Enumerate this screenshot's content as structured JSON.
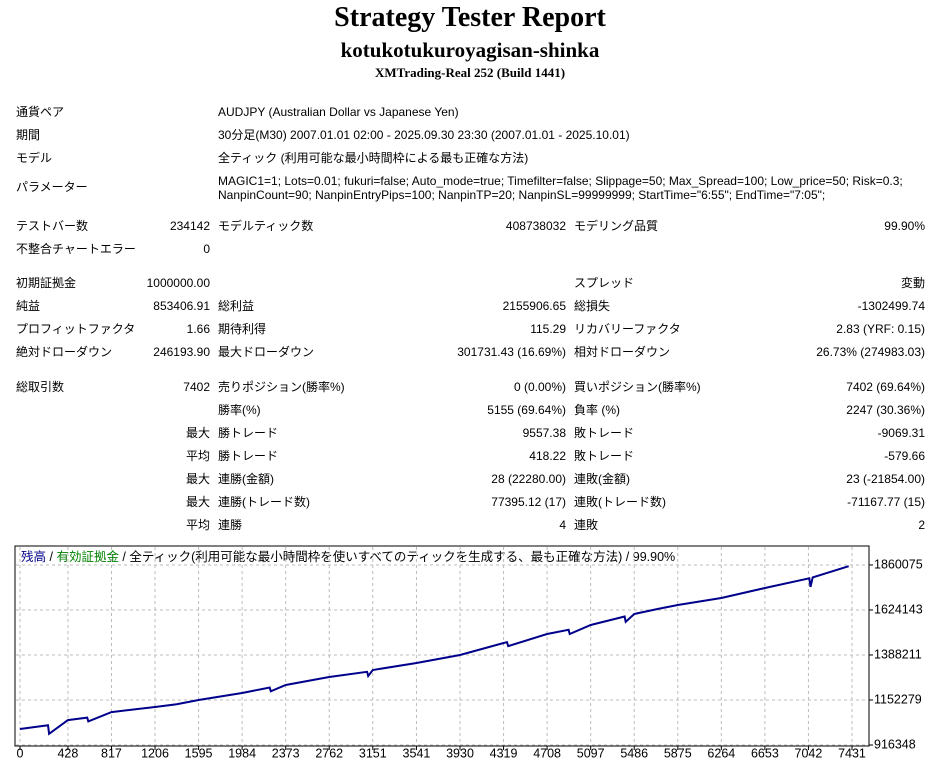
{
  "header": {
    "title": "Strategy Tester Report",
    "subtitle": "kotukotukuroyagisan-shinka",
    "server": "XMTrading-Real 252 (Build 1441)"
  },
  "groups": [
    [
      {
        "label": "通貨ペア",
        "text": "AUDJPY (Australian Dollar vs Japanese Yen)"
      },
      {
        "label": "期間",
        "text": "30分足(M30) 2007.01.01 02:00 - 2025.09.30 23:30 (2007.01.01 - 2025.10.01)"
      },
      {
        "label": "モデル",
        "text": "全ティック (利用可能な最小時間枠による最も正確な方法)"
      },
      {
        "label": "パラメーター",
        "text": "MAGIC1=1; Lots=0.01; fukuri=false; Auto_mode=true; Timefilter=false; Slippage=50; Max_Spread=100; Low_price=50; Risk=0.3; NanpinCount=90; NanpinEntryPips=100; NanpinTP=20; NanpinSL=99999999; StartTime=\"6:55\"; EndTime=\"7:05\";"
      }
    ],
    [
      {
        "label": "テストバー数",
        "value": "234142",
        "label2": "モデルティック数",
        "value2": "408738032",
        "label3": "モデリング品質",
        "value3": "99.90%"
      },
      {
        "label": "不整合チャートエラー",
        "value": "0"
      }
    ],
    [
      {
        "label": "初期証拠金",
        "value": "1000000.00",
        "label3": "スプレッド",
        "value3": "変動"
      },
      {
        "label": "純益",
        "value": "853406.91",
        "label2": "総利益",
        "value2": "2155906.65",
        "label3": "総損失",
        "value3": "-1302499.74"
      },
      {
        "label": "プロフィットファクタ",
        "value": "1.66",
        "label2": "期待利得",
        "value2": "115.29",
        "label3": "リカバリーファクタ",
        "value3": "2.83 (YRF: 0.15)"
      },
      {
        "label": "絶対ドローダウン",
        "value": "246193.90",
        "label2": "最大ドローダウン",
        "value2": "301731.43 (16.69%)",
        "label3": "相対ドローダウン",
        "value3": "26.73% (274983.03)"
      }
    ],
    [
      {
        "label": "総取引数",
        "value": "7402",
        "label2": "売りポジション(勝率%)",
        "value2": "0 (0.00%)",
        "label3": "買いポジション(勝率%)",
        "value3": "7402 (69.64%)"
      },
      {
        "label2": "勝率(%)",
        "value2": "5155 (69.64%)",
        "label3": "負率 (%)",
        "value3": "2247 (30.36%)"
      },
      {
        "value": "最大",
        "label2": "勝トレード",
        "value2": "9557.38",
        "label3": "敗トレード",
        "value3": "-9069.31"
      },
      {
        "value": "平均",
        "label2": "勝トレード",
        "value2": "418.22",
        "label3": "敗トレード",
        "value3": "-579.66"
      },
      {
        "value": "最大",
        "label2": "連勝(金額)",
        "value2": "28 (22280.00)",
        "label3": "連敗(金額)",
        "value3": "23 (-21854.00)"
      },
      {
        "value": "最大",
        "label2": "連勝(トレード数)",
        "value2": "77395.12 (17)",
        "label3": "連敗(トレード数)",
        "value3": "-71167.77 (15)"
      },
      {
        "value": "平均",
        "label2": "連勝",
        "value2": "4",
        "label3": "連敗",
        "value3": "2"
      }
    ]
  ],
  "chart_data": {
    "type": "line",
    "series_name": "残高",
    "color": "#00008b",
    "equity_label": "有効証拠金",
    "equity_color": "#008000",
    "description": "全ティック(利用可能な最小時間枠を使いすべてのティックを生成する、最も正確な方法)",
    "quality": "99.90%",
    "x": [
      0,
      250,
      260,
      428,
      600,
      610,
      817,
      1206,
      1400,
      1595,
      1984,
      2230,
      2240,
      2373,
      2762,
      3100,
      3110,
      3151,
      3541,
      3930,
      4319,
      4350,
      4360,
      4708,
      4900,
      4910,
      5097,
      5400,
      5410,
      5486,
      5700,
      5875,
      6264,
      6653,
      7050,
      7060,
      7080,
      7402
    ],
    "values": [
      1000000,
      1020000,
      975000,
      1047000,
      1060000,
      1040000,
      1089000,
      1115600,
      1130000,
      1152300,
      1189000,
      1218000,
      1198000,
      1231000,
      1272900,
      1300000,
      1278000,
      1309600,
      1346300,
      1388200,
      1451100,
      1455000,
      1435000,
      1498300,
      1520000,
      1498000,
      1545500,
      1590000,
      1562000,
      1603200,
      1630000,
      1650400,
      1687100,
      1739500,
      1790000,
      1745000,
      1795000,
      1853407
    ],
    "xlim": [
      0,
      7574
    ],
    "xticks": [
      0,
      428,
      817,
      1206,
      1595,
      1984,
      2373,
      2762,
      3151,
      3541,
      3930,
      4319,
      4708,
      5097,
      5486,
      5875,
      6264,
      6653,
      7042,
      7431
    ],
    "ylim": [
      916348,
      1949000
    ],
    "yticks": [
      916348,
      1152279,
      1388211,
      1624143,
      1860075
    ],
    "grid": true
  }
}
